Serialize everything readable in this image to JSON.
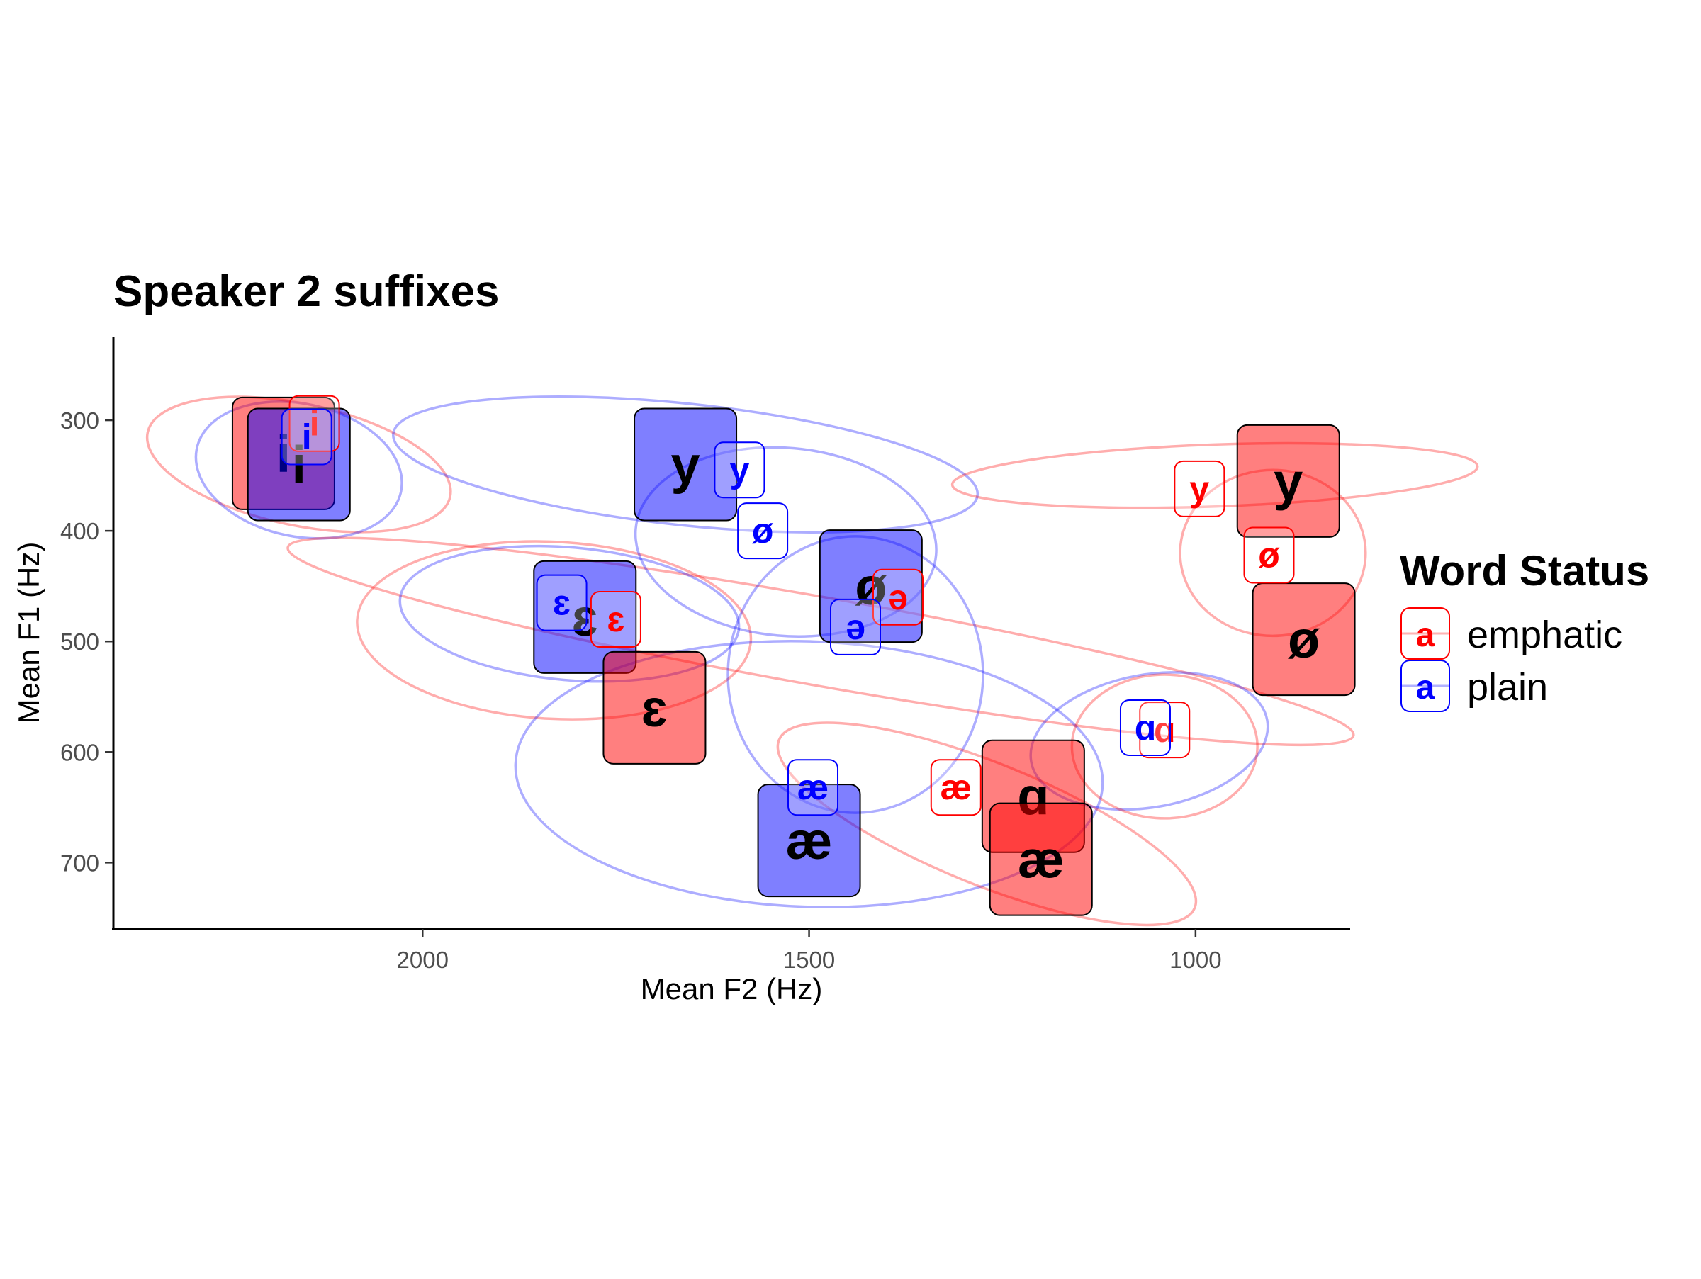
{
  "chart_data": {
    "type": "scatter",
    "title": "Speaker 2 suffixes",
    "xlabel": "Mean F2 (Hz)",
    "ylabel": "Mean F1 (Hz)",
    "x_reversed": true,
    "y_reversed": true,
    "xlim": [
      2400,
      800
    ],
    "ylim": [
      225,
      760
    ],
    "x_ticks": [
      {
        "value": 2000,
        "label": "2000"
      },
      {
        "value": 1500,
        "label": "1500"
      },
      {
        "value": 1000,
        "label": "1000"
      }
    ],
    "y_ticks": [
      {
        "value": 300,
        "label": "300"
      },
      {
        "value": 400,
        "label": "400"
      },
      {
        "value": 500,
        "label": "500"
      },
      {
        "value": 600,
        "label": "600"
      },
      {
        "value": 700,
        "label": "700"
      }
    ],
    "legend": {
      "title": "Word Status",
      "position": "right",
      "entries": [
        {
          "label": "emphatic",
          "key": "a",
          "color": "#ff0000"
        },
        {
          "label": "plain",
          "key": "a",
          "color": "#0000ff"
        }
      ]
    },
    "colors": {
      "emphatic": "#ff0000",
      "plain": "#0000ff"
    },
    "means": [
      {
        "vowel": "i",
        "status": "emphatic",
        "f2": 2180,
        "f1": 330
      },
      {
        "vowel": "i",
        "status": "plain",
        "f2": 2160,
        "f1": 340
      },
      {
        "vowel": "y",
        "status": "plain",
        "f2": 1660,
        "f1": 340
      },
      {
        "vowel": "ɛ",
        "status": "plain",
        "f2": 1790,
        "f1": 478
      },
      {
        "vowel": "ɛ",
        "status": "emphatic",
        "f2": 1700,
        "f1": 560
      },
      {
        "vowel": "ø",
        "status": "plain",
        "f2": 1420,
        "f1": 450
      },
      {
        "vowel": "æ",
        "status": "plain",
        "f2": 1500,
        "f1": 680
      },
      {
        "vowel": "ɑ",
        "status": "emphatic",
        "f2": 1210,
        "f1": 640
      },
      {
        "vowel": "æ",
        "status": "emphatic",
        "f2": 1200,
        "f1": 697
      },
      {
        "vowel": "y",
        "status": "emphatic",
        "f2": 880,
        "f1": 355
      },
      {
        "vowel": "ø",
        "status": "emphatic",
        "f2": 860,
        "f1": 498
      }
    ],
    "tokens": [
      {
        "vowel": "i",
        "status": "emphatic",
        "f2": 2140,
        "f1": 303
      },
      {
        "vowel": "i",
        "status": "plain",
        "f2": 2150,
        "f1": 315
      },
      {
        "vowel": "y",
        "status": "plain",
        "f2": 1590,
        "f1": 345
      },
      {
        "vowel": "ø",
        "status": "plain",
        "f2": 1560,
        "f1": 400
      },
      {
        "vowel": "ɛ",
        "status": "plain",
        "f2": 1820,
        "f1": 465
      },
      {
        "vowel": "ɛ",
        "status": "emphatic",
        "f2": 1750,
        "f1": 480
      },
      {
        "vowel": "ə",
        "status": "emphatic",
        "f2": 1385,
        "f1": 460
      },
      {
        "vowel": "ə",
        "status": "plain",
        "f2": 1440,
        "f1": 487
      },
      {
        "vowel": "æ",
        "status": "plain",
        "f2": 1495,
        "f1": 632
      },
      {
        "vowel": "æ",
        "status": "emphatic",
        "f2": 1310,
        "f1": 632
      },
      {
        "vowel": "ɑ",
        "status": "emphatic",
        "f2": 1040,
        "f1": 580
      },
      {
        "vowel": "ɑ",
        "status": "plain",
        "f2": 1065,
        "f1": 578
      },
      {
        "vowel": "y",
        "status": "emphatic",
        "f2": 995,
        "f1": 362
      },
      {
        "vowel": "ø",
        "status": "emphatic",
        "f2": 905,
        "f1": 422
      }
    ],
    "ellipses": [
      {
        "status": "emphatic",
        "cx": 2160,
        "cy": 340,
        "rx": 200,
        "ry": 55,
        "angle": 12
      },
      {
        "status": "plain",
        "cx": 2160,
        "cy": 345,
        "rx": 135,
        "ry": 60,
        "angle": 12
      },
      {
        "status": "plain",
        "cx": 1660,
        "cy": 340,
        "rx": 380,
        "ry": 55,
        "angle": 6
      },
      {
        "status": "emphatic",
        "cx": 1485,
        "cy": 500,
        "rx": 700,
        "ry": 40,
        "angle": 10
      },
      {
        "status": "emphatic",
        "cx": 1830,
        "cy": 490,
        "rx": 255,
        "ry": 80,
        "angle": 3
      },
      {
        "status": "plain",
        "cx": 1810,
        "cy": 475,
        "rx": 220,
        "ry": 60,
        "angle": 5
      },
      {
        "status": "plain",
        "cx": 1530,
        "cy": 410,
        "rx": 195,
        "ry": 85,
        "angle": 5
      },
      {
        "status": "plain",
        "cx": 1440,
        "cy": 530,
        "rx": 165,
        "ry": 125,
        "angle": 0
      },
      {
        "status": "plain",
        "cx": 1500,
        "cy": 620,
        "rx": 380,
        "ry": 120,
        "angle": 2
      },
      {
        "status": "emphatic",
        "cx": 1270,
        "cy": 665,
        "rx": 290,
        "ry": 55,
        "angle": 22
      },
      {
        "status": "plain",
        "cx": 1060,
        "cy": 590,
        "rx": 155,
        "ry": 60,
        "angle": -10
      },
      {
        "status": "emphatic",
        "cx": 1040,
        "cy": 595,
        "rx": 120,
        "ry": 65,
        "angle": 0
      },
      {
        "status": "emphatic",
        "cx": 975,
        "cy": 350,
        "rx": 340,
        "ry": 28,
        "angle": -2
      },
      {
        "status": "emphatic",
        "cx": 900,
        "cy": 420,
        "rx": 120,
        "ry": 75,
        "angle": 0
      }
    ]
  }
}
